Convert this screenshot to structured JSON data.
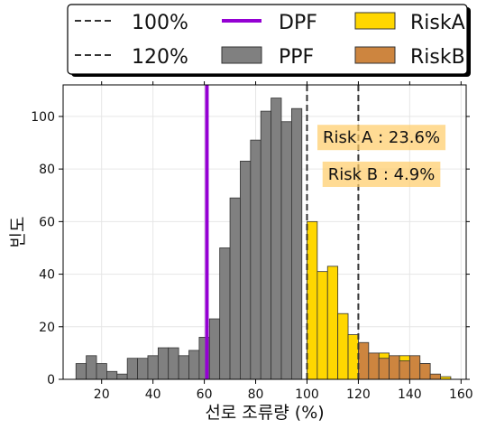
{
  "chart_data": {
    "type": "bar",
    "subtype": "histogram",
    "xlabel": "선로 조류량 (%)",
    "ylabel": "빈도",
    "xlim": [
      5,
      162
    ],
    "ylim": [
      0,
      112
    ],
    "xticks": [
      20,
      40,
      60,
      80,
      100,
      120,
      140,
      160
    ],
    "yticks": [
      0,
      20,
      40,
      60,
      80,
      100
    ],
    "grid": true,
    "legend_position": "top, outside plot, 3 columns",
    "bins": {
      "width": 4,
      "edges_start": [
        10,
        14,
        18,
        22,
        26,
        30,
        34,
        38,
        42,
        46,
        50,
        54,
        58,
        62,
        66,
        70,
        74,
        78,
        82,
        86,
        90,
        94
      ],
      "counts": [
        6,
        9,
        6,
        3,
        2,
        8,
        8,
        9,
        12,
        12,
        9,
        11,
        16,
        23,
        50,
        69,
        83,
        91,
        102,
        107,
        98,
        103
      ]
    },
    "series": [
      {
        "name": "PPF",
        "color": "#808080",
        "x_start": [
          10,
          14,
          18,
          22,
          26,
          30,
          34,
          38,
          42,
          46,
          50,
          54,
          58,
          62,
          66,
          70,
          74,
          78,
          82,
          86,
          90,
          94
        ],
        "values": [
          6,
          9,
          6,
          3,
          2,
          8,
          8,
          9,
          12,
          12,
          9,
          11,
          16,
          23,
          50,
          69,
          83,
          91,
          102,
          107,
          98,
          103
        ]
      },
      {
        "name": "RiskA",
        "color": "#ffd700",
        "x_start": [
          100,
          104,
          108,
          112,
          116,
          120,
          124,
          128,
          132,
          136,
          140,
          144,
          148,
          152
        ],
        "values": [
          60,
          41,
          43,
          25,
          17,
          7,
          7,
          10,
          8,
          9,
          7,
          6,
          1,
          1
        ]
      },
      {
        "name": "RiskB",
        "color": "#cd853f",
        "x_start": [
          120,
          124,
          128,
          132,
          136,
          140,
          144,
          148,
          152
        ],
        "values": [
          14,
          10,
          8,
          9,
          7,
          9,
          6,
          2,
          0
        ]
      }
    ],
    "vlines": [
      {
        "name": "100%",
        "x": 100,
        "style": "dashed",
        "color": "#333333"
      },
      {
        "name": "120%",
        "x": 120,
        "style": "dashed",
        "color": "#333333"
      },
      {
        "name": "DPF",
        "x": 61,
        "style": "solid",
        "color": "#9400d3"
      }
    ],
    "annotations": [
      {
        "text": "Risk A : 23.6%",
        "x": 129,
        "y": 92,
        "color": "#ffcc66"
      },
      {
        "text": "Risk B : 4.9%",
        "x": 129,
        "y": 78,
        "color": "#ffcc66"
      }
    ],
    "legend": [
      {
        "label": "100%",
        "kind": "dashed",
        "color": "#333333"
      },
      {
        "label": "120%",
        "kind": "dashed",
        "color": "#333333"
      },
      {
        "label": "DPF",
        "kind": "solid",
        "color": "#9400d3"
      },
      {
        "label": "PPF",
        "kind": "patch",
        "color": "#808080"
      },
      {
        "label": "RiskA",
        "kind": "patch",
        "color": "#ffd700"
      },
      {
        "label": "RiskB",
        "kind": "patch",
        "color": "#cd853f"
      }
    ]
  }
}
